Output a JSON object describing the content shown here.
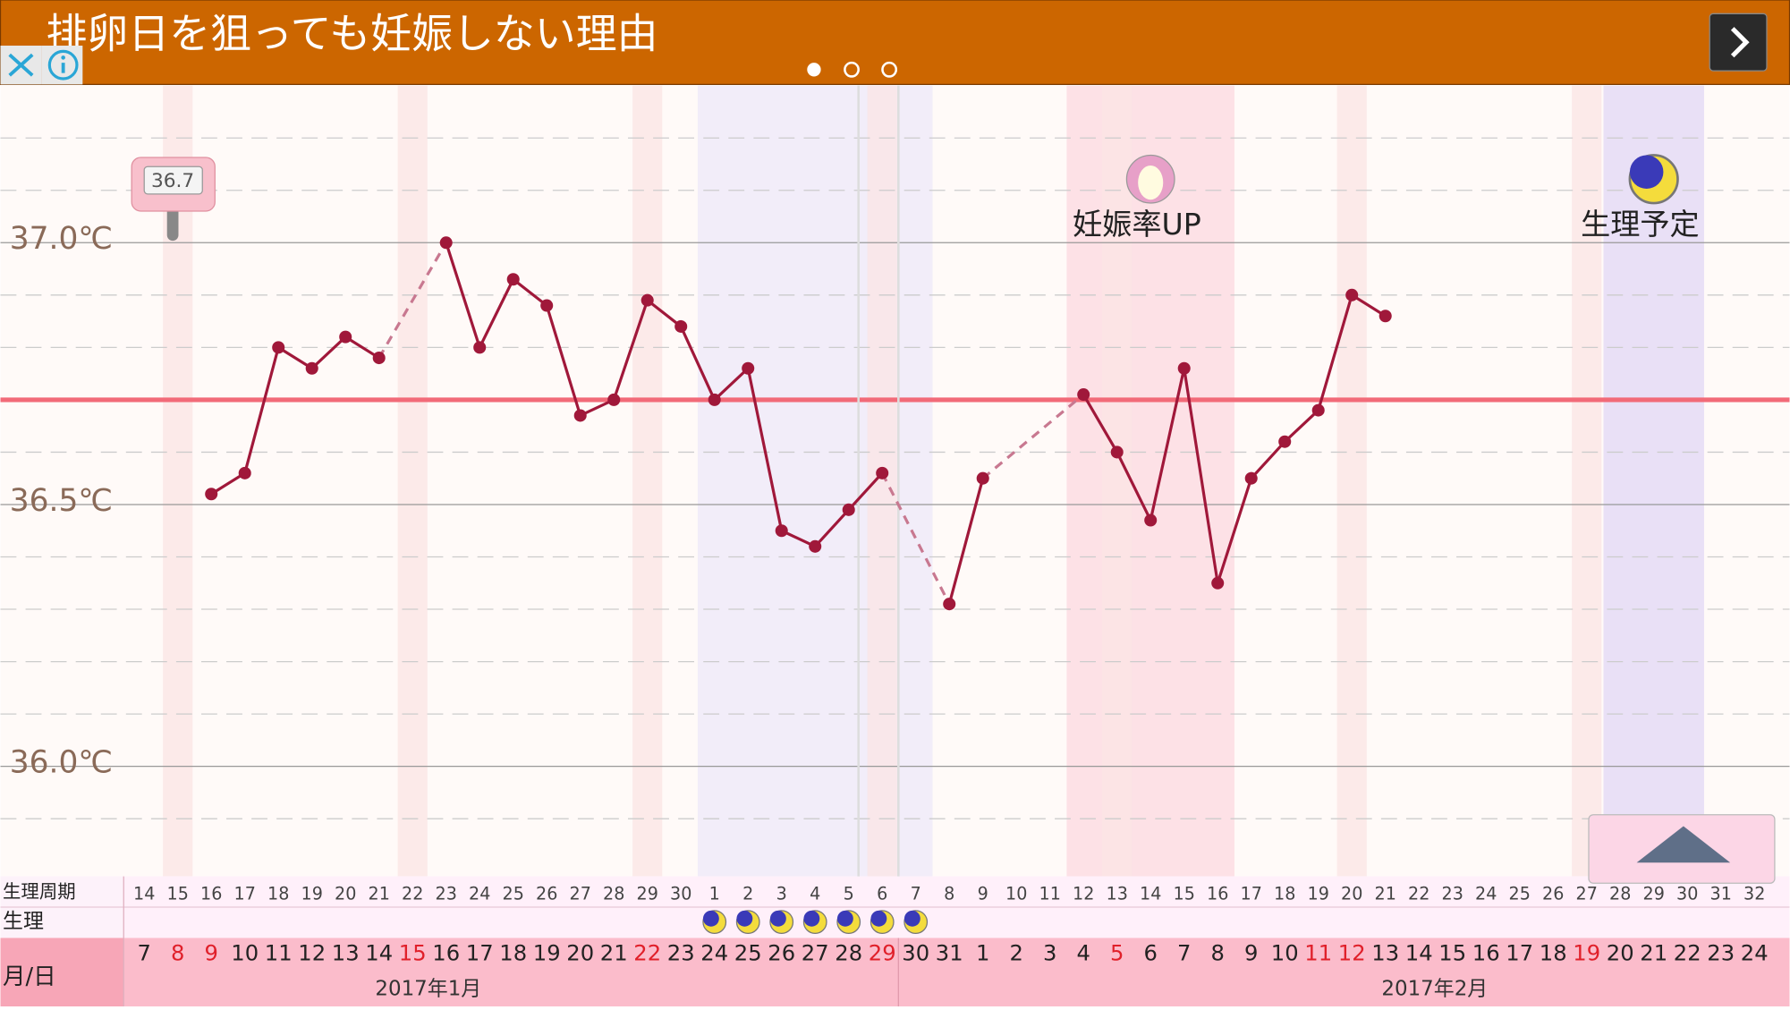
{
  "ad": {
    "title": "排卵日を狙っても妊娠しない理由"
  },
  "labels": {
    "cycle": "生理周期",
    "period": "生理",
    "date": "月/日"
  },
  "chart_data": {
    "type": "line",
    "color": "#a0183a",
    "grid": true,
    "dates": [
      7,
      8,
      9,
      10,
      11,
      12,
      13,
      14,
      15,
      16,
      17,
      18,
      19,
      20,
      21,
      22,
      23,
      24,
      25,
      26,
      27,
      28,
      29,
      30,
      31,
      1,
      2,
      3,
      4,
      5,
      6,
      7,
      8,
      9,
      10,
      11,
      12,
      13,
      14,
      15,
      16,
      17,
      18,
      19,
      20,
      21,
      22,
      23,
      24
    ],
    "cycle_days": [
      14,
      15,
      16,
      17,
      18,
      19,
      20,
      21,
      22,
      23,
      24,
      25,
      26,
      27,
      28,
      29,
      30,
      1,
      2,
      3,
      4,
      5,
      6,
      7,
      8,
      9,
      10,
      11,
      12,
      13,
      14,
      15,
      16,
      17,
      18,
      19,
      20,
      21,
      22,
      23,
      24,
      25,
      26,
      27,
      28,
      29,
      30,
      31,
      32
    ],
    "months": [
      "2017年1月",
      "2017年2月"
    ],
    "values": [
      null,
      null,
      36.52,
      36.56,
      36.8,
      36.76,
      36.82,
      36.78,
      null,
      37.0,
      36.8,
      36.93,
      36.88,
      36.67,
      36.7,
      36.89,
      36.84,
      36.7,
      36.76,
      36.45,
      36.42,
      36.49,
      36.56,
      null,
      36.31,
      36.55,
      null,
      null,
      36.71,
      36.6,
      36.47,
      36.76,
      36.35,
      36.55,
      36.62,
      36.68,
      36.9,
      36.86,
      null,
      null,
      null,
      null,
      null,
      null,
      null,
      null,
      null,
      null,
      null
    ],
    "ylim": [
      35.79,
      37.3
    ],
    "yticks": [
      {
        "value": 36,
        "label": "36.0℃"
      },
      {
        "value": 36.5,
        "label": "36.5℃"
      },
      {
        "value": 37,
        "label": "37.0℃"
      }
    ],
    "minor_yticks": [
      35.9,
      36.1,
      36.2,
      36.3,
      36.4,
      36.6,
      36.8,
      36.9,
      37.1,
      37.2
    ],
    "coverline": 36.7,
    "coverline_color": "#f26a78",
    "tooltip": 36.7,
    "sundays": [
      1,
      8,
      15,
      22,
      29,
      36,
      43
    ],
    "holidays": [
      1,
      2,
      8,
      15,
      22,
      29,
      35,
      36,
      43
    ],
    "period_band": [
      17,
      23
    ],
    "fertile_band": [
      28,
      32
    ],
    "predicted_band": [
      44,
      46
    ],
    "annotations": [
      {
        "text": "妊娠率UP",
        "index": 30,
        "icon": "egg"
      },
      {
        "text": "生理予定",
        "index": 45,
        "icon": "moon"
      }
    ]
  }
}
